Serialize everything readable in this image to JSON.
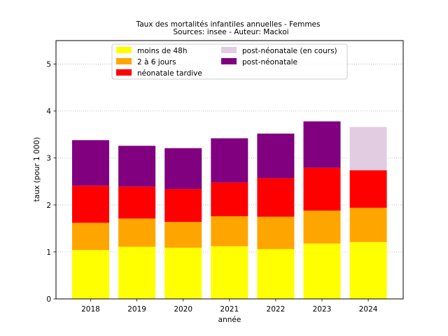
{
  "chart_data": {
    "type": "bar",
    "stacked": true,
    "title": "Taux des mortalités infantiles annuelles - Femmes",
    "subtitle": "Sources: insee - Auteur: Mackoi",
    "xlabel": "année",
    "ylabel": "taux (pour 1 000)",
    "ylim": [
      0,
      5.5
    ],
    "yticks": [
      0,
      1,
      2,
      3,
      4,
      5
    ],
    "grid": "horizontal dotted",
    "legend_position": "top-center",
    "categories": [
      "2018",
      "2019",
      "2020",
      "2021",
      "2022",
      "2023",
      "2024"
    ],
    "series": [
      {
        "name": "moins de 48h",
        "color": "#ffff00",
        "values": [
          1.04,
          1.11,
          1.09,
          1.12,
          1.06,
          1.18,
          1.21
        ]
      },
      {
        "name": "2 à 6 jours",
        "color": "#ffa500",
        "values": [
          0.58,
          0.6,
          0.55,
          0.64,
          0.69,
          0.7,
          0.73
        ]
      },
      {
        "name": "néonatale tardive",
        "color": "#ff0000",
        "values": [
          0.79,
          0.68,
          0.7,
          0.72,
          0.82,
          0.91,
          0.8
        ]
      },
      {
        "name": "post-néonatale",
        "color": "#800080",
        "values": [
          0.97,
          0.87,
          0.87,
          0.94,
          0.95,
          0.99,
          null
        ]
      },
      {
        "name": "post-néonatale (en cours)",
        "color": "#e2cce2",
        "values": [
          null,
          null,
          null,
          null,
          null,
          null,
          0.92
        ]
      }
    ],
    "legend_order": [
      "moins de 48h",
      "2 à 6 jours",
      "néonatale tardive",
      "post-néonatale (en cours)",
      "post-néonatale"
    ]
  }
}
